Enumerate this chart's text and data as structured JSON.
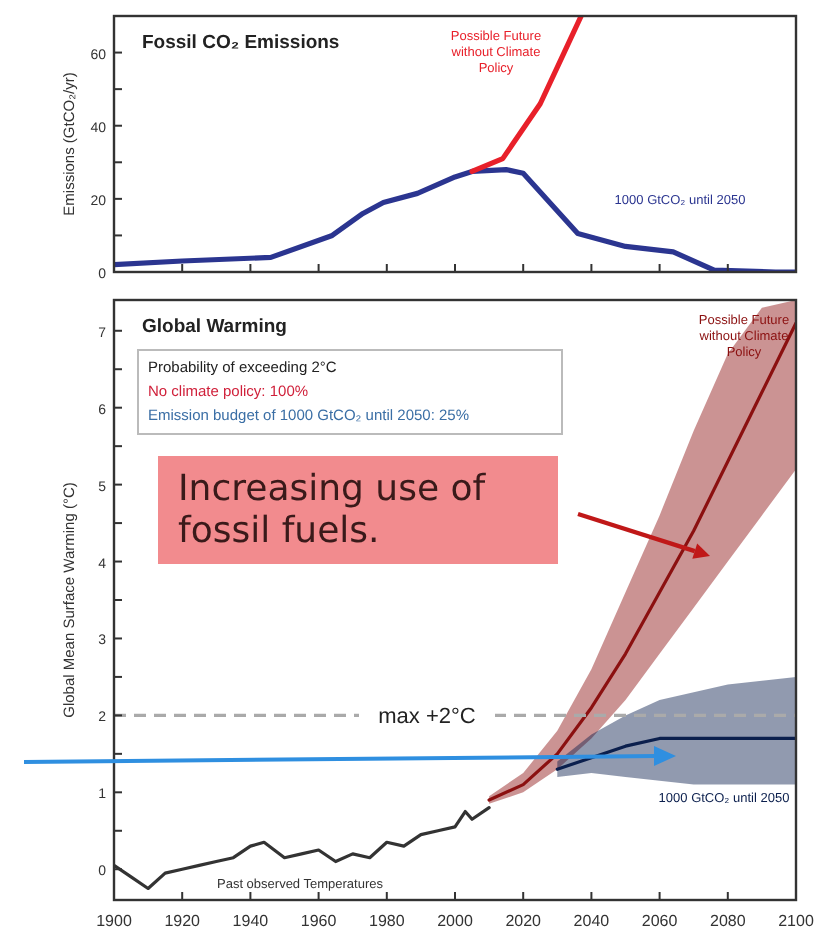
{
  "chart_data": [
    {
      "type": "line",
      "title": "Fossil CO₂ Emissions",
      "ylabel": "Emissions (GtCO₂/yr)",
      "xlim": [
        1900,
        2100
      ],
      "xticks": [
        1900,
        1920,
        1940,
        1960,
        1980,
        2000,
        2020,
        2040,
        2060,
        2080,
        2100
      ],
      "ylim": [
        0,
        70
      ],
      "yticks": [
        0,
        {
          "value": 10,
          "label": null
        },
        20,
        {
          "value": 30,
          "label": null
        },
        40,
        {
          "value": 50,
          "label": null
        },
        60
      ],
      "tick_labels": "y",
      "grid": false,
      "series": [
        {
          "name": "1000 GtCO₂ until 2050",
          "color": "#2b3590",
          "x": [
            1900,
            1920,
            1946,
            1964,
            1973,
            1979,
            1989,
            2000,
            2005,
            2015,
            2020,
            2036,
            2050,
            2064,
            2076,
            2094,
            2100
          ],
          "values": [
            2,
            3,
            4,
            10,
            16,
            19,
            21.5,
            26,
            27.5,
            28,
            27,
            10.5,
            7,
            5.5,
            0.5,
            0,
            0
          ]
        },
        {
          "name": "Possible Future without Climate Policy",
          "color": "#e8202a",
          "x": [
            2005,
            2014,
            2025,
            2032,
            2037
          ],
          "values": [
            27.5,
            31,
            46,
            60,
            70
          ]
        }
      ]
    },
    {
      "type": "line",
      "title": "Global Warming",
      "ylabel": "Global Mean Surface Warming (°C)",
      "xlim": [
        1900,
        2100
      ],
      "xticks": [
        1900,
        1920,
        1940,
        1960,
        1980,
        2000,
        2020,
        2040,
        2060,
        2080,
        2100
      ],
      "ylim": [
        -0.4,
        7.4
      ],
      "yticks": [
        0,
        {
          "value": 0.5,
          "label": null
        },
        1,
        {
          "value": 1.5,
          "label": null
        },
        2,
        {
          "value": 2.5,
          "label": null
        },
        3,
        {
          "value": 3.5,
          "label": null
        },
        4,
        {
          "value": 4.5,
          "label": null
        },
        5,
        {
          "value": 5.5,
          "label": null
        },
        6,
        {
          "value": 6.5,
          "label": null
        },
        7
      ],
      "grid": false,
      "series": [
        {
          "name": "Past observed Temperatures",
          "color": "#333333",
          "x": [
            1900,
            1905,
            1910,
            1915,
            1920,
            1925,
            1930,
            1935,
            1940,
            1944,
            1950,
            1955,
            1960,
            1965,
            1970,
            1975,
            1980,
            1985,
            1990,
            1995,
            2000,
            2003,
            2005,
            2010
          ],
          "values": [
            0.05,
            -0.1,
            -0.25,
            -0.05,
            0,
            0.05,
            0.1,
            0.15,
            0.3,
            0.35,
            0.15,
            0.2,
            0.25,
            0.1,
            0.2,
            0.15,
            0.35,
            0.3,
            0.45,
            0.5,
            0.55,
            0.75,
            0.65,
            0.8
          ]
        },
        {
          "name": "Possible Future without Climate Policy",
          "color": "#8b1010",
          "x": [
            2010,
            2020,
            2030,
            2040,
            2050,
            2060,
            2070,
            2080,
            2090,
            2100
          ],
          "values": [
            0.9,
            1.1,
            1.5,
            2.1,
            2.8,
            3.6,
            4.4,
            5.3,
            6.2,
            7.1
          ],
          "lower": [
            0.85,
            1.0,
            1.3,
            1.7,
            2.2,
            2.8,
            3.4,
            4.0,
            4.6,
            5.2
          ],
          "upper": [
            0.95,
            1.25,
            1.8,
            2.6,
            3.6,
            4.6,
            5.7,
            6.7,
            7.3,
            7.4
          ]
        },
        {
          "name": "1000 GtCO₂ until 2050",
          "color": "#0b1f4d",
          "x": [
            2030,
            2040,
            2050,
            2060,
            2070,
            2080,
            2090,
            2100
          ],
          "values": [
            1.3,
            1.45,
            1.6,
            1.7,
            1.7,
            1.7,
            1.7,
            1.7
          ],
          "lower": [
            1.2,
            1.25,
            1.2,
            1.15,
            1.1,
            1.1,
            1.1,
            1.1
          ],
          "upper": [
            1.4,
            1.75,
            2.0,
            2.2,
            2.3,
            2.4,
            2.45,
            2.5
          ]
        }
      ],
      "ref_lines": [
        {
          "axis": "y",
          "value": 2,
          "label": "max +2°C",
          "line_style": "dashed",
          "color": "#aaaaaa"
        }
      ],
      "annotations": [
        "Probability of exceeding 2°C",
        "No climate policy: 100%",
        "Emission budget of 1000 GtCO₂ until 2050: 25%",
        "Increasing use of fossil fuels."
      ]
    }
  ]
}
